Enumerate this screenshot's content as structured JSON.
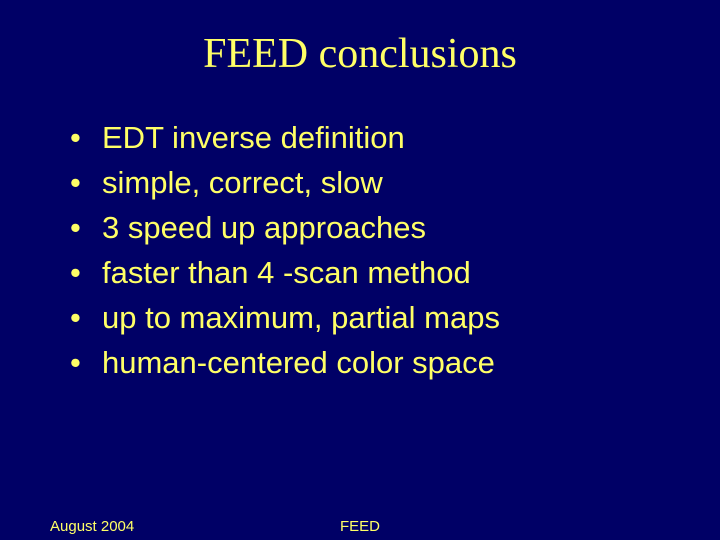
{
  "slide": {
    "background_color": "#000066",
    "text_color": "#ffff66",
    "title": {
      "text": "FEED conclusions",
      "fontsize": 42,
      "font_family": "Times New Roman"
    },
    "bullets": {
      "fontsize": 31,
      "font_family": "Arial",
      "items": [
        "EDT inverse definition",
        "simple, correct, slow",
        "3 speed up approaches",
        "faster than 4 -scan method",
        "up to maximum, partial maps",
        "human-centered color space"
      ]
    },
    "footer": {
      "fontsize": 15,
      "left": "August 2004",
      "center": "FEED"
    }
  }
}
